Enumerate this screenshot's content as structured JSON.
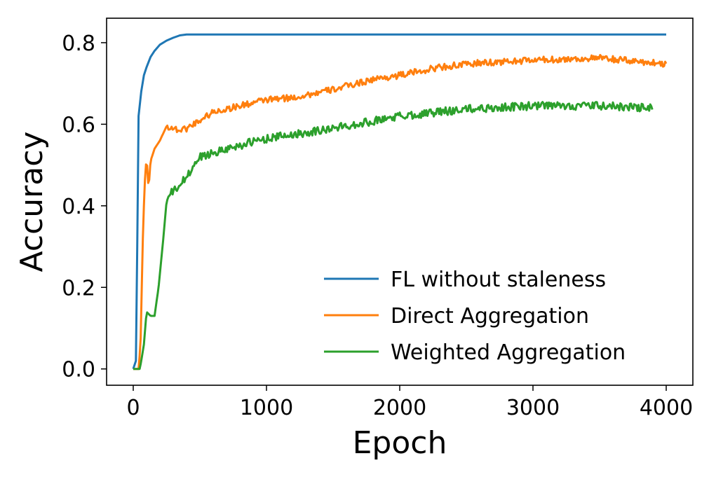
{
  "chart_data": {
    "type": "line",
    "xlabel": "Epoch",
    "ylabel": "Accuracy",
    "xlim": [
      -200,
      4200
    ],
    "ylim": [
      -0.04,
      0.86
    ],
    "xticks": [
      0,
      1000,
      2000,
      3000,
      4000
    ],
    "xtick_labels": [
      "0",
      "1000",
      "2000",
      "3000",
      "4000"
    ],
    "yticks": [
      0.0,
      0.2,
      0.4,
      0.6,
      0.8
    ],
    "ytick_labels": [
      "0.0",
      "0.2",
      "0.4",
      "0.6",
      "0.8"
    ],
    "grid": false,
    "legend_position": "lower-right",
    "series": [
      {
        "name": "FL without staleness",
        "color": "#1f77b4",
        "x": [
          0,
          20,
          30,
          40,
          60,
          80,
          100,
          130,
          160,
          200,
          250,
          300,
          350,
          400,
          500,
          1000,
          2000,
          3000,
          4000
        ],
        "y": [
          0.0,
          0.02,
          0.3,
          0.62,
          0.68,
          0.72,
          0.74,
          0.765,
          0.78,
          0.795,
          0.805,
          0.812,
          0.818,
          0.82,
          0.82,
          0.82,
          0.82,
          0.82,
          0.82
        ],
        "noise": 0
      },
      {
        "name": "Direct Aggregation",
        "color": "#ff7f0e",
        "x": [
          0,
          40,
          55,
          70,
          85,
          100,
          115,
          130,
          160,
          200,
          250,
          300,
          350,
          400,
          450,
          500,
          600,
          800,
          1000,
          1200,
          1500,
          1800,
          2000,
          2300,
          2600,
          3000,
          3500,
          4000
        ],
        "y": [
          0.0,
          0.0,
          0.06,
          0.3,
          0.45,
          0.52,
          0.44,
          0.51,
          0.54,
          0.56,
          0.595,
          0.59,
          0.585,
          0.59,
          0.6,
          0.61,
          0.63,
          0.645,
          0.66,
          0.665,
          0.685,
          0.71,
          0.72,
          0.74,
          0.75,
          0.757,
          0.762,
          0.748
        ],
        "noise": 0.008
      },
      {
        "name": "Weighted Aggregation",
        "color": "#2ca02c",
        "x": [
          0,
          50,
          80,
          100,
          130,
          160,
          190,
          220,
          250,
          280,
          320,
          400,
          500,
          700,
          1000,
          1500,
          2000,
          2500,
          3000,
          3500,
          3900
        ],
        "y": [
          0.0,
          0.0,
          0.06,
          0.14,
          0.13,
          0.13,
          0.2,
          0.3,
          0.41,
          0.43,
          0.44,
          0.47,
          0.52,
          0.54,
          0.565,
          0.59,
          0.62,
          0.637,
          0.645,
          0.645,
          0.64
        ],
        "noise": 0.01
      }
    ]
  }
}
